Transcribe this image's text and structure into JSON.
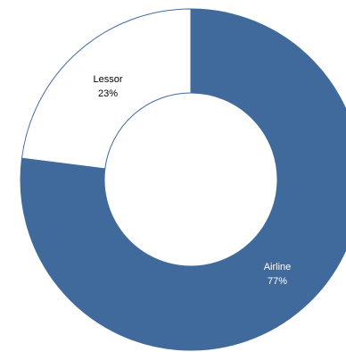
{
  "chart_data": {
    "type": "pie",
    "donut": true,
    "categories": [
      "Airline",
      "Lessor"
    ],
    "values": [
      77,
      23
    ],
    "labels": [
      {
        "name": "Airline",
        "percent": "77%"
      },
      {
        "name": "Lessor",
        "percent": "23%"
      }
    ],
    "colors": {
      "Airline": "#416A9C",
      "Lessor": "#FFFFFF",
      "label_on_dark": "#FFFFFF",
      "label_on_light": "#000000",
      "outline": "#416A9C"
    },
    "start_angle_deg": 0,
    "direction": "clockwise",
    "legend": "none"
  }
}
